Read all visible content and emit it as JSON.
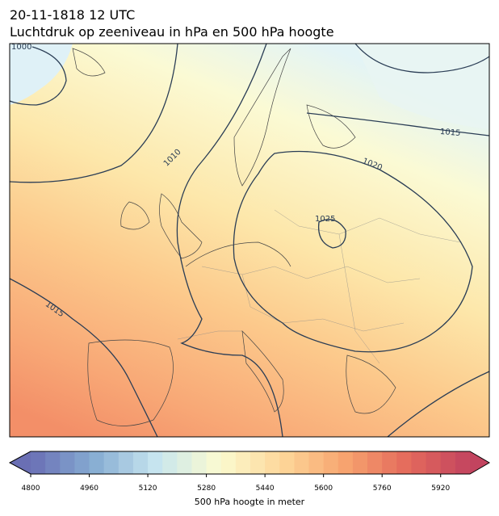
{
  "header": {
    "date": "20-11-1818 12 UTC",
    "title": "Luchtdruk op zeeniveau in hPa en 500 hPa hoogte"
  },
  "contour_labels": [
    "1000",
    "1010",
    "1015",
    "1020",
    "1025",
    "1015"
  ],
  "colorbar": {
    "lim": [
      4800,
      6000
    ],
    "ticks": [
      4800,
      4960,
      5120,
      5280,
      5440,
      5600,
      5760,
      5920
    ],
    "label": "500 hPa hoogte in meter"
  }
}
